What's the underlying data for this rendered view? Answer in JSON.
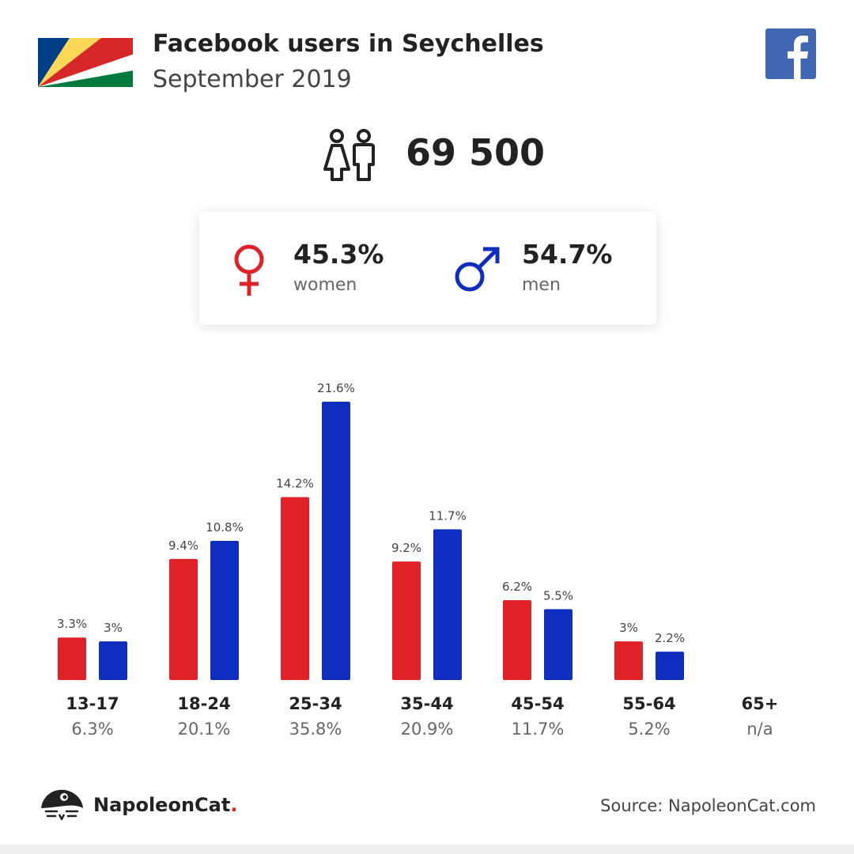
{
  "header": {
    "title": "Facebook users in Seychelles",
    "subtitle": "September 2019",
    "flag_icon": "seychelles-flag-icon",
    "brand_icon": "facebook-logo-icon"
  },
  "total": {
    "icon": "people-icon",
    "value": "69 500"
  },
  "gender": {
    "women": {
      "icon": "female-symbol-icon",
      "percent": "45.3%",
      "label": "women"
    },
    "men": {
      "icon": "male-symbol-icon",
      "percent": "54.7%",
      "label": "men"
    }
  },
  "age_groups": [
    {
      "range": "13-17",
      "share": "6.3%"
    },
    {
      "range": "18-24",
      "share": "20.1%"
    },
    {
      "range": "25-34",
      "share": "35.8%"
    },
    {
      "range": "35-44",
      "share": "20.9%"
    },
    {
      "range": "45-54",
      "share": "11.7%"
    },
    {
      "range": "55-64",
      "share": "5.2%"
    },
    {
      "range": "65+",
      "share": "n/a"
    }
  ],
  "chart_data": {
    "type": "bar",
    "categories": [
      "13-17",
      "18-24",
      "25-34",
      "35-44",
      "45-54",
      "55-64",
      "65+"
    ],
    "series": [
      {
        "name": "women",
        "color": "#e02128",
        "values": [
          3.3,
          9.4,
          14.2,
          9.2,
          6.2,
          3,
          null
        ],
        "labels": [
          "3.3%",
          "9.4%",
          "14.2%",
          "9.2%",
          "6.2%",
          "3%",
          ""
        ]
      },
      {
        "name": "men",
        "color": "#0f2dbf",
        "values": [
          3,
          10.8,
          21.6,
          11.7,
          5.5,
          2.2,
          null
        ],
        "labels": [
          "3%",
          "10.8%",
          "21.6%",
          "11.7%",
          "5.5%",
          "2.2%",
          ""
        ]
      }
    ],
    "ylim": [
      0,
      21.6
    ],
    "grid": false
  },
  "footer": {
    "brand_icon": "napoleoncat-logo-icon",
    "brand_name": "NapoleonCat",
    "brand_dot": ".",
    "source": "Source: NapoleonCat.com"
  },
  "colors": {
    "women": "#e02128",
    "men": "#0f2dbf",
    "facebook": "#4267b2"
  }
}
